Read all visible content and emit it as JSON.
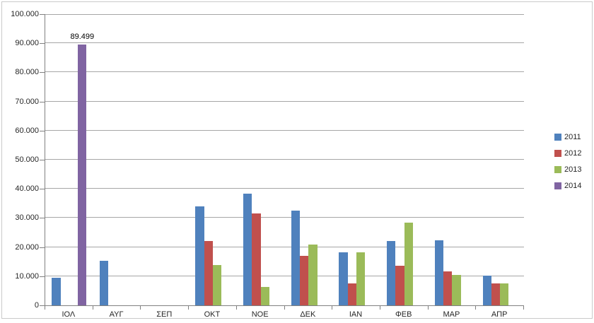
{
  "chart_data": {
    "type": "bar",
    "title": "",
    "xlabel": "",
    "ylabel": "",
    "categories": [
      "ΙΟΛ",
      "ΑΥΓ",
      "ΣΕΠ",
      "ΟΚΤ",
      "ΝΟΕ",
      "ΔΕΚ",
      "ΙΑΝ",
      "ΦΕΒ",
      "ΜΑΡ",
      "ΑΠΡ"
    ],
    "series": [
      {
        "name": "2011",
        "color": "#4F81BD",
        "values": [
          9400,
          15400,
          0,
          34000,
          38300,
          32500,
          18100,
          22100,
          22400,
          10100
        ]
      },
      {
        "name": "2012",
        "color": "#C0504D",
        "values": [
          0,
          0,
          0,
          22000,
          31600,
          17000,
          7600,
          13700,
          11700,
          7600
        ]
      },
      {
        "name": "2013",
        "color": "#9BBB59",
        "values": [
          0,
          0,
          0,
          13900,
          6300,
          20900,
          18300,
          28400,
          10400,
          7600
        ]
      },
      {
        "name": "2014",
        "color": "#8064A2",
        "values": [
          89499,
          0,
          0,
          0,
          0,
          0,
          0,
          0,
          0,
          0
        ]
      }
    ],
    "ylim": [
      0,
      100000
    ],
    "y_tick_step": 10000,
    "y_tick_labels": [
      "0",
      "10.000",
      "20.000",
      "30.000",
      "40.000",
      "50.000",
      "60.000",
      "70.000",
      "80.000",
      "90.000",
      "100.000"
    ],
    "grid": "horizontal",
    "legend_position": "right",
    "data_labels": [
      {
        "series": "2014",
        "category": "ΙΟΛ",
        "text": "89.499"
      }
    ]
  },
  "colors": {
    "background": "#FFFFFF",
    "chart_border": "#C9C9C9",
    "axis_line": "#808080",
    "gridline": "#A6A6A6",
    "label_text": "#262626"
  }
}
